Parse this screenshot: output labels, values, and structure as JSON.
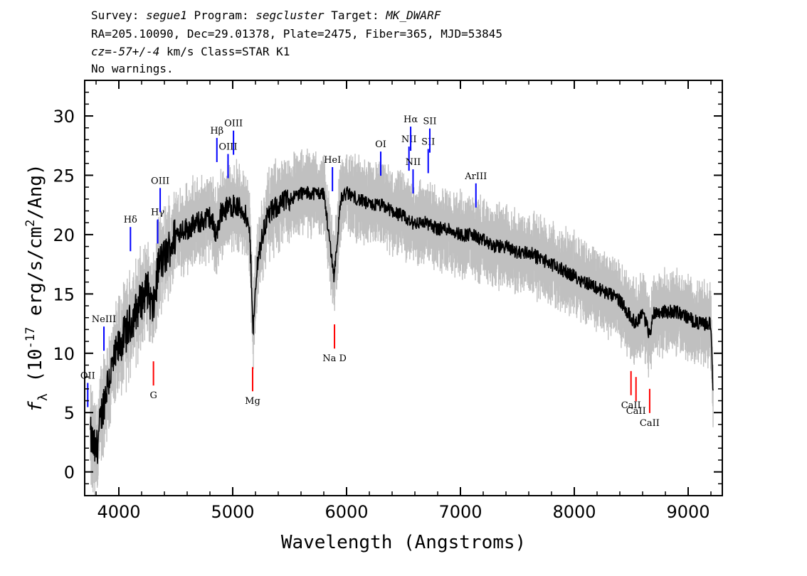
{
  "header": {
    "survey_label": "Survey:",
    "survey": "segue1",
    "program_label": "Program:",
    "program": "segcluster",
    "target_label": "Target:",
    "target": "MK_DWARF",
    "line2": "RA=205.10090, Dec=29.01378, Plate=2475, Fiber=365, MJD=53845",
    "cz_label": "cz=",
    "cz": "-57+/-4",
    "cz_unit": "km/s",
    "class": "Class=STAR K1",
    "warnings": "No warnings."
  },
  "chart_data": {
    "type": "line",
    "xlabel": "Wavelength (Angstroms)",
    "ylabel": "f_λ (10^-17 erg/s/cm^2/Ang)",
    "xlim": [
      3700,
      9300
    ],
    "ylim": [
      -2,
      33
    ],
    "x_ticks": [
      4000,
      5000,
      6000,
      7000,
      8000,
      9000
    ],
    "y_ticks": [
      0,
      5,
      10,
      15,
      20,
      25,
      30
    ],
    "x_tick_labels": [
      "4000",
      "5000",
      "6000",
      "7000",
      "8000",
      "9000"
    ],
    "y_tick_labels": [
      "0",
      "5",
      "10",
      "15",
      "20",
      "25",
      "30"
    ],
    "grid": false,
    "colors": {
      "flux": "#000000",
      "noise": "#c0c0c0",
      "emission": "#0000ff",
      "absorption": "#ff0000"
    },
    "series": [
      {
        "values": [
          [
            3750,
            3.0
          ],
          [
            3800,
            1.5
          ],
          [
            3850,
            5.0
          ],
          [
            3900,
            7.5
          ],
          [
            3950,
            9.0
          ],
          [
            4000,
            10.5
          ],
          [
            4050,
            11.5
          ],
          [
            4100,
            12.5
          ],
          [
            4150,
            13.5
          ],
          [
            4200,
            14.5
          ],
          [
            4250,
            15.5
          ],
          [
            4300,
            13.5
          ],
          [
            4350,
            17.5
          ],
          [
            4400,
            18.0
          ],
          [
            4450,
            19.0
          ],
          [
            4500,
            20.0
          ],
          [
            4550,
            20.5
          ],
          [
            4600,
            20.5
          ],
          [
            4700,
            21.0
          ],
          [
            4800,
            21.5
          ],
          [
            4860,
            20.0
          ],
          [
            4900,
            22.0
          ],
          [
            5000,
            22.5
          ],
          [
            5100,
            22.0
          ],
          [
            5150,
            20.0
          ],
          [
            5180,
            12.0
          ],
          [
            5220,
            18.0
          ],
          [
            5300,
            21.5
          ],
          [
            5400,
            22.5
          ],
          [
            5500,
            23.0
          ],
          [
            5600,
            23.5
          ],
          [
            5700,
            23.5
          ],
          [
            5800,
            23.5
          ],
          [
            5890,
            16.5
          ],
          [
            5950,
            23.0
          ],
          [
            6000,
            23.5
          ],
          [
            6100,
            23.0
          ],
          [
            6200,
            22.5
          ],
          [
            6300,
            22.5
          ],
          [
            6400,
            22.0
          ],
          [
            6500,
            21.5
          ],
          [
            6563,
            21.0
          ],
          [
            6600,
            21.0
          ],
          [
            6700,
            21.0
          ],
          [
            6800,
            20.5
          ],
          [
            6900,
            20.5
          ],
          [
            7000,
            20.0
          ],
          [
            7100,
            20.0
          ],
          [
            7200,
            19.5
          ],
          [
            7300,
            19.0
          ],
          [
            7400,
            19.0
          ],
          [
            7500,
            18.5
          ],
          [
            7600,
            18.5
          ],
          [
            7700,
            18.0
          ],
          [
            7800,
            17.5
          ],
          [
            7900,
            17.0
          ],
          [
            8000,
            16.5
          ],
          [
            8100,
            16.0
          ],
          [
            8200,
            15.5
          ],
          [
            8300,
            15.0
          ],
          [
            8400,
            14.5
          ],
          [
            8498,
            13.0
          ],
          [
            8542,
            12.5
          ],
          [
            8600,
            13.5
          ],
          [
            8662,
            11.5
          ],
          [
            8700,
            13.5
          ],
          [
            8800,
            13.5
          ],
          [
            8900,
            13.5
          ],
          [
            9000,
            13.0
          ],
          [
            9100,
            12.5
          ],
          [
            9200,
            12.5
          ],
          [
            9220,
            6.0
          ]
        ]
      }
    ],
    "emission_lines": [
      {
        "label": "OII",
        "wavelength": 3727
      },
      {
        "label": "NeIII",
        "wavelength": 3869
      },
      {
        "label": "Hδ",
        "wavelength": 4102
      },
      {
        "label": "Hγ",
        "wavelength": 4341
      },
      {
        "label": "OIII",
        "wavelength": 4363
      },
      {
        "label": "Hβ",
        "wavelength": 4861
      },
      {
        "label": "OIII",
        "wavelength": 4959
      },
      {
        "label": "OIII",
        "wavelength": 5007
      },
      {
        "label": "HeI",
        "wavelength": 5876
      },
      {
        "label": "OI",
        "wavelength": 6300
      },
      {
        "label": "NII",
        "wavelength": 6548
      },
      {
        "label": "Hα",
        "wavelength": 6563
      },
      {
        "label": "NII",
        "wavelength": 6584
      },
      {
        "label": "SII",
        "wavelength": 6717
      },
      {
        "label": "SII",
        "wavelength": 6731
      },
      {
        "label": "ArIII",
        "wavelength": 7136
      }
    ],
    "absorption_lines": [
      {
        "label": "G",
        "wavelength": 4304
      },
      {
        "label": "Mg",
        "wavelength": 5175
      },
      {
        "label": "Na D",
        "wavelength": 5894
      },
      {
        "label": "CaII",
        "wavelength": 8498
      },
      {
        "label": "CaII",
        "wavelength": 8542
      },
      {
        "label": "CaII",
        "wavelength": 8662
      }
    ]
  }
}
